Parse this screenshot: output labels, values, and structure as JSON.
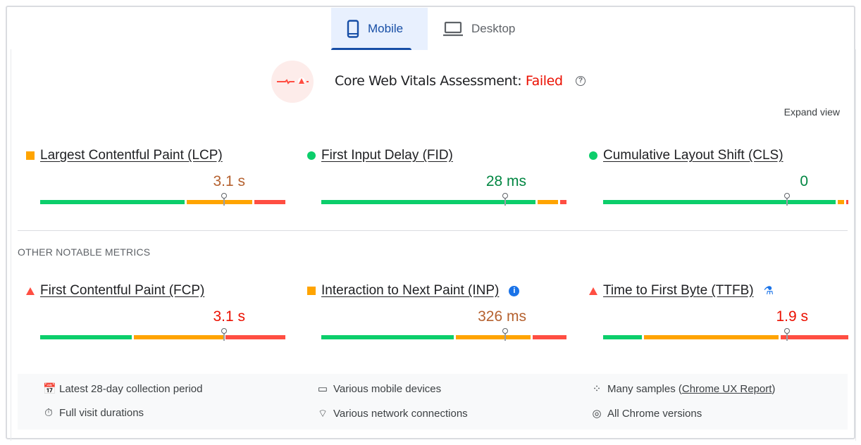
{
  "tabs": [
    {
      "label": "Mobile",
      "icon": "smartphone-icon",
      "active": true
    },
    {
      "label": "Desktop",
      "icon": "laptop-icon",
      "active": false
    }
  ],
  "assessment": {
    "label": "Core Web Vitals Assessment:",
    "status": "Failed",
    "status_color": "#eb0f00"
  },
  "expand_view": "Expand view",
  "colors": {
    "good": "#0cce6b",
    "needs_improvement": "#ffa400",
    "poor": "#ff4e42"
  },
  "core_metrics": [
    {
      "label": "Largest Contentful Paint (LCP)",
      "value": "3.1 s",
      "rating": "needs-improvement",
      "value_color": "#b5612f",
      "distribution": [
        60,
        27,
        13
      ],
      "marker_pct": 75
    },
    {
      "label": "First Input Delay (FID)",
      "value": "28 ms",
      "rating": "good",
      "value_color": "#018642",
      "distribution": [
        89,
        8.5,
        2.5
      ],
      "marker_pct": 75
    },
    {
      "label": "Cumulative Layout Shift (CLS)",
      "value": "0",
      "rating": "good",
      "value_color": "#018642",
      "distribution": [
        96.5,
        2.5,
        1
      ],
      "marker_pct": 75
    }
  ],
  "other_heading": "OTHER NOTABLE METRICS",
  "other_metrics": [
    {
      "label": "First Contentful Paint (FCP)",
      "value": "3.1 s",
      "rating": "poor",
      "value_color": "#eb0f00",
      "distribution": [
        38,
        37,
        25
      ],
      "marker_pct": 75
    },
    {
      "label": "Interaction to Next Paint (INP)",
      "value": "326 ms",
      "rating": "needs-improvement",
      "value_color": "#b5612f",
      "distribution": [
        55,
        31,
        14
      ],
      "marker_pct": 75,
      "extra_icon": "info-icon"
    },
    {
      "label": "Time to First Byte (TTFB)",
      "value": "1.9 s",
      "rating": "poor",
      "value_color": "#eb0f00",
      "distribution": [
        16,
        56,
        28
      ],
      "marker_pct": 75,
      "extra_icon": "flask-icon"
    }
  ],
  "footer": {
    "collection": "Latest 28-day collection period",
    "devices": "Various mobile devices",
    "samples_prefix": "Many samples (",
    "samples_link": "Chrome UX Report",
    "samples_suffix": ")",
    "durations": "Full visit durations",
    "network": "Various network connections",
    "versions": "All Chrome versions"
  }
}
